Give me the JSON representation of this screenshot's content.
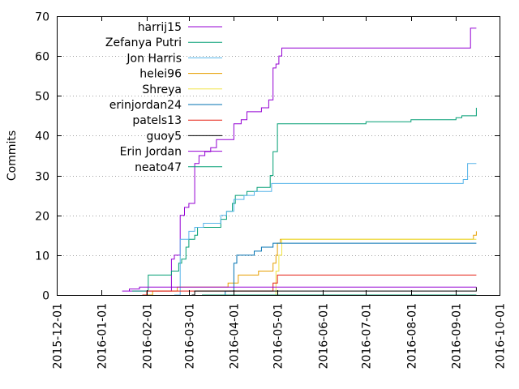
{
  "chart_data": {
    "type": "line",
    "ylabel": "Commits",
    "xlabel": "",
    "title": "",
    "grid": "dotted horizontal",
    "legend_position": "top-left",
    "ylim": [
      0,
      70
    ],
    "y_ticks": [
      0,
      10,
      20,
      30,
      40,
      50,
      60,
      70
    ],
    "xlim": [
      "2015-12-01",
      "2016-10-01"
    ],
    "x_ticks": [
      "2015-12-01",
      "2016-01-01",
      "2016-02-01",
      "2016-03-01",
      "2016-04-01",
      "2016-05-01",
      "2016-06-01",
      "2016-07-01",
      "2016-08-01",
      "2016-09-01",
      "2016-10-01"
    ],
    "series": [
      {
        "name": "harrij15",
        "color": "#9400d3",
        "points": [
          [
            "2016-01-20",
            1
          ],
          [
            "2016-02-12",
            1
          ],
          [
            "2016-02-18",
            9
          ],
          [
            "2016-02-20",
            10
          ],
          [
            "2016-02-24",
            20
          ],
          [
            "2016-02-27",
            22
          ],
          [
            "2016-03-01",
            23
          ],
          [
            "2016-03-03",
            23
          ],
          [
            "2016-03-05",
            33
          ],
          [
            "2016-03-08",
            35
          ],
          [
            "2016-03-12",
            36
          ],
          [
            "2016-03-16",
            37
          ],
          [
            "2016-03-20",
            39
          ],
          [
            "2016-03-27",
            39
          ],
          [
            "2016-04-01",
            43
          ],
          [
            "2016-04-06",
            44
          ],
          [
            "2016-04-10",
            46
          ],
          [
            "2016-04-20",
            47
          ],
          [
            "2016-04-25",
            49
          ],
          [
            "2016-04-28",
            57
          ],
          [
            "2016-04-30",
            58
          ],
          [
            "2016-05-02",
            60
          ],
          [
            "2016-05-04",
            62
          ],
          [
            "2016-09-09",
            62
          ],
          [
            "2016-09-11",
            67
          ],
          [
            "2016-09-15",
            67
          ]
        ]
      },
      {
        "name": "Zefanya Putri",
        "color": "#009e73",
        "points": [
          [
            "2016-01-22",
            1
          ],
          [
            "2016-02-02",
            5
          ],
          [
            "2016-02-14",
            5
          ],
          [
            "2016-02-18",
            6
          ],
          [
            "2016-02-23",
            8
          ],
          [
            "2016-02-25",
            9
          ],
          [
            "2016-02-28",
            12
          ],
          [
            "2016-03-01",
            14
          ],
          [
            "2016-03-05",
            15
          ],
          [
            "2016-03-07",
            17
          ],
          [
            "2016-03-20",
            17
          ],
          [
            "2016-03-23",
            19
          ],
          [
            "2016-03-27",
            21
          ],
          [
            "2016-03-31",
            23
          ],
          [
            "2016-04-02",
            25
          ],
          [
            "2016-04-10",
            26
          ],
          [
            "2016-04-17",
            27
          ],
          [
            "2016-04-26",
            30
          ],
          [
            "2016-04-28",
            36
          ],
          [
            "2016-05-01",
            43
          ],
          [
            "2016-06-01",
            43
          ],
          [
            "2016-07-01",
            43.5
          ],
          [
            "2016-08-01",
            44
          ],
          [
            "2016-09-01",
            44.5
          ],
          [
            "2016-09-05",
            45
          ],
          [
            "2016-09-13",
            45
          ],
          [
            "2016-09-15",
            47
          ]
        ]
      },
      {
        "name": "Jon Harris",
        "color": "#56b4e9",
        "points": [
          [
            "2016-02-20",
            0
          ],
          [
            "2016-02-24",
            14
          ],
          [
            "2016-02-28",
            14
          ],
          [
            "2016-03-01",
            16
          ],
          [
            "2016-03-05",
            17
          ],
          [
            "2016-03-11",
            18
          ],
          [
            "2016-03-20",
            18
          ],
          [
            "2016-03-23",
            20
          ],
          [
            "2016-03-27",
            21
          ],
          [
            "2016-04-01",
            24
          ],
          [
            "2016-04-08",
            25
          ],
          [
            "2016-04-15",
            26
          ],
          [
            "2016-04-24",
            26
          ],
          [
            "2016-04-27",
            28
          ],
          [
            "2016-05-01",
            28
          ],
          [
            "2016-08-31",
            28
          ],
          [
            "2016-09-06",
            29
          ],
          [
            "2016-09-09",
            33
          ],
          [
            "2016-09-15",
            33
          ]
        ]
      },
      {
        "name": "helei96",
        "color": "#e69f00",
        "points": [
          [
            "2016-01-29",
            0
          ],
          [
            "2016-02-05",
            1
          ],
          [
            "2016-02-12",
            1
          ],
          [
            "2016-02-22",
            2
          ],
          [
            "2016-03-26",
            2
          ],
          [
            "2016-03-28",
            3
          ],
          [
            "2016-04-04",
            5
          ],
          [
            "2016-04-15",
            5
          ],
          [
            "2016-04-18",
            6
          ],
          [
            "2016-04-25",
            6
          ],
          [
            "2016-04-28",
            8
          ],
          [
            "2016-04-30",
            10
          ],
          [
            "2016-05-01",
            13
          ],
          [
            "2016-05-03",
            14
          ],
          [
            "2016-09-09",
            14
          ],
          [
            "2016-09-13",
            15
          ],
          [
            "2016-09-15",
            16
          ]
        ]
      },
      {
        "name": "Shreya",
        "color": "#f0e442",
        "points": [
          [
            "2016-04-20",
            0
          ],
          [
            "2016-04-30",
            6
          ],
          [
            "2016-05-02",
            10
          ],
          [
            "2016-05-04",
            14
          ],
          [
            "2016-09-15",
            14
          ]
        ]
      },
      {
        "name": "erinjordan24",
        "color": "#0072b2",
        "points": [
          [
            "2016-03-18",
            0
          ],
          [
            "2016-03-26",
            1
          ],
          [
            "2016-04-01",
            8
          ],
          [
            "2016-04-03",
            10
          ],
          [
            "2016-04-10",
            10
          ],
          [
            "2016-04-15",
            11
          ],
          [
            "2016-04-20",
            12
          ],
          [
            "2016-04-28",
            13
          ],
          [
            "2016-09-15",
            13
          ]
        ]
      },
      {
        "name": "patels13",
        "color": "#e51e10",
        "points": [
          [
            "2016-01-29",
            0
          ],
          [
            "2016-02-01",
            1
          ],
          [
            "2016-04-22",
            1
          ],
          [
            "2016-04-28",
            3
          ],
          [
            "2016-05-01",
            5
          ],
          [
            "2016-09-15",
            5
          ]
        ]
      },
      {
        "name": "guoy5",
        "color": "#000000",
        "points": [
          [
            "2016-03-03",
            0
          ],
          [
            "2016-03-05",
            1
          ],
          [
            "2016-09-15",
            1
          ],
          [
            "2016-09-15",
            2
          ]
        ]
      },
      {
        "name": "Erin Jordan",
        "color": "#9400d3",
        "points": [
          [
            "2016-01-15",
            1
          ],
          [
            "2016-01-20",
            1.5
          ],
          [
            "2016-01-27",
            2
          ],
          [
            "2016-09-15",
            2
          ]
        ]
      },
      {
        "name": "neato47",
        "color": "#009e73",
        "points": [
          [
            "2016-03-10",
            0
          ],
          [
            "2016-09-15",
            0
          ]
        ]
      }
    ]
  }
}
